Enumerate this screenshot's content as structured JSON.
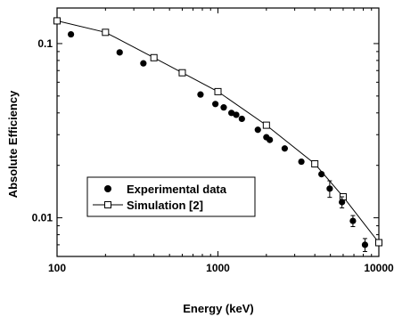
{
  "chart_data": {
    "type": "scatter",
    "title": "",
    "xlabel": "Energy (keV)",
    "ylabel": "Absolute Efficiency",
    "xscale": "log",
    "yscale": "log",
    "xlim": [
      100,
      10000
    ],
    "ylim": [
      0.006,
      0.16
    ],
    "x_ticks": [
      {
        "value": 100,
        "label": "100"
      },
      {
        "value": 1000,
        "label": "1000"
      },
      {
        "value": 10000,
        "label": "10000"
      }
    ],
    "y_ticks": [
      {
        "value": 0.01,
        "label": "0.01"
      },
      {
        "value": 0.1,
        "label": "0.1"
      }
    ],
    "grid": false,
    "legend": "center-left",
    "series": [
      {
        "name": "Experimental data",
        "style": "filled-circle",
        "color": "#000000",
        "points": [
          {
            "x": 122,
            "y": 0.113
          },
          {
            "x": 245,
            "y": 0.089
          },
          {
            "x": 344,
            "y": 0.077
          },
          {
            "x": 779,
            "y": 0.051
          },
          {
            "x": 964,
            "y": 0.045
          },
          {
            "x": 1086,
            "y": 0.043
          },
          {
            "x": 1213,
            "y": 0.04
          },
          {
            "x": 1299,
            "y": 0.039
          },
          {
            "x": 1408,
            "y": 0.037
          },
          {
            "x": 1770,
            "y": 0.032
          },
          {
            "x": 2000,
            "y": 0.029
          },
          {
            "x": 2100,
            "y": 0.028
          },
          {
            "x": 2600,
            "y": 0.025
          },
          {
            "x": 3300,
            "y": 0.021
          },
          {
            "x": 4400,
            "y": 0.0178
          },
          {
            "x": 4950,
            "y": 0.0147,
            "err": 0.0016
          },
          {
            "x": 5900,
            "y": 0.0123,
            "err": 0.0009
          },
          {
            "x": 6900,
            "y": 0.0096,
            "err": 0.0007
          },
          {
            "x": 8200,
            "y": 0.007,
            "err": 0.0006
          }
        ]
      },
      {
        "name": "Simulation [2]",
        "style": "open-square-line",
        "color": "#000000",
        "points": [
          {
            "x": 100,
            "y": 0.135
          },
          {
            "x": 200,
            "y": 0.116
          },
          {
            "x": 400,
            "y": 0.083
          },
          {
            "x": 600,
            "y": 0.068
          },
          {
            "x": 1000,
            "y": 0.053
          },
          {
            "x": 2000,
            "y": 0.034
          },
          {
            "x": 4000,
            "y": 0.0204
          },
          {
            "x": 6000,
            "y": 0.0132
          },
          {
            "x": 10000,
            "y": 0.0072
          }
        ]
      }
    ]
  }
}
